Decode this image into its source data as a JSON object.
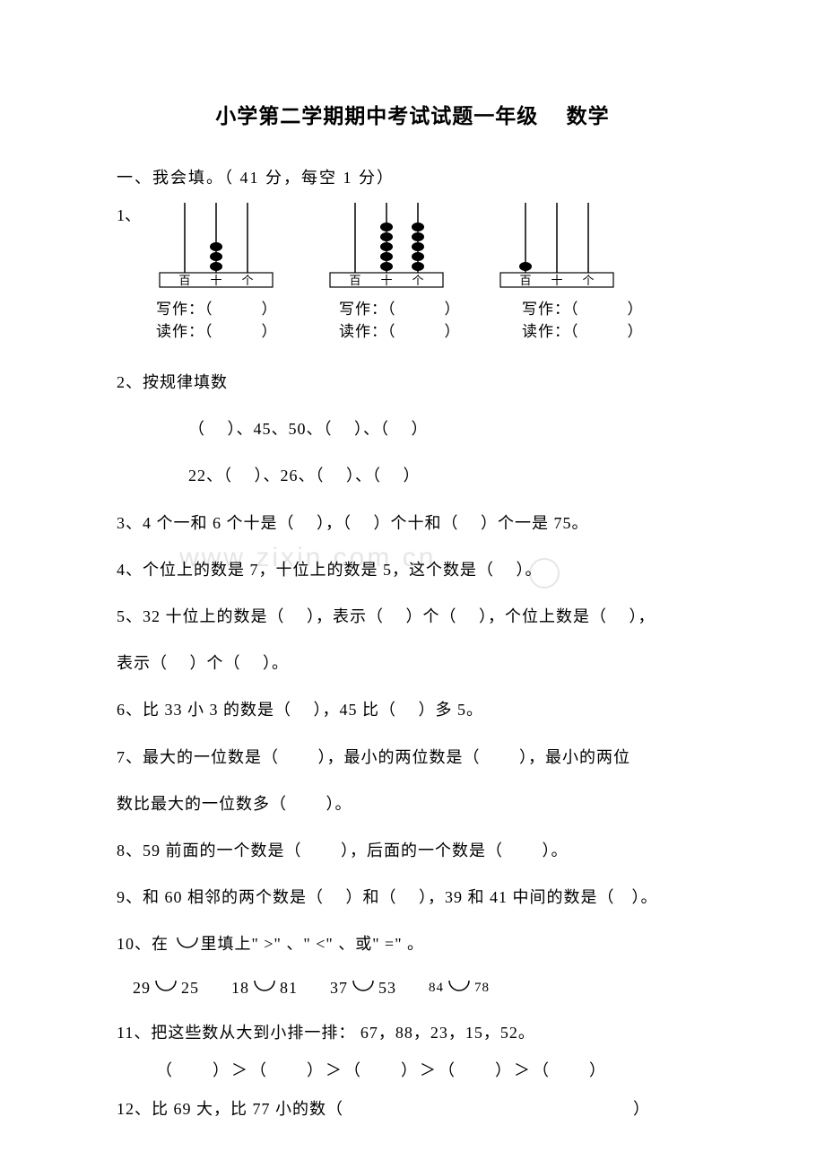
{
  "title": "小学第二学期期中考试试题一年级　 数学",
  "section1_header": "一、我会填。（ 41 分，每空 1 分）",
  "watermark_text": "www zixin com cn",
  "q1": {
    "num": "1、",
    "labels": {
      "bai": "百",
      "shi": "十",
      "ge": "个"
    },
    "write_prefix": "写作：（",
    "write_suffix": "）",
    "read_prefix": "读作：（",
    "read_suffix": "）",
    "abacus_bg": "#ffffff",
    "abacus_line": "#000000",
    "abacus_bead": "#000000",
    "abacus": [
      {
        "beads": [
          0,
          3,
          0
        ]
      },
      {
        "beads": [
          0,
          5,
          5
        ]
      },
      {
        "beads": [
          1,
          0,
          0
        ]
      }
    ]
  },
  "q2": {
    "label": "2、按规律填数",
    "line1": "（　 ）、45、50、（　 ）、（　 ）",
    "line2": "22、（　 ）、26、（　 ）、（　 ）"
  },
  "q3": "3、4 个一和 6 个十是（　 ），（　 ）个十和（　 ）个一是 75。",
  "q4": "4、个位上的数是 7，十位上的数是 5，这个数是（　 ）。",
  "q5": "5、32 十位上的数是（　 ），表示（　 ）个（　 ），个位上数是（　 ），",
  "q5b": "表示（　 ）个（　 ）。",
  "q6": "6、比 33 小 3 的数是（　 ），45 比（　 ）多 5。",
  "q7": "7、最大的一位数是（　 　），最小的两位数是（　 　），最小的两位",
  "q7b": "数比最大的一位数多（　 　）。",
  "q8": "8、59 前面的一个数是（　 　），后面的一个数是（　 　）。",
  "q9": "9、和 60 相邻的两个数是（　 ）和（　 ），39 和 41 中间的数是（　）。",
  "q10": {
    "prefix": "10、在 ",
    "mid": "里填上\" >\" 、\" <\" 、或\" =\" 。",
    "pairs": [
      {
        "a": "29",
        "b": "25"
      },
      {
        "a": "18",
        "b": "81"
      },
      {
        "a": "37",
        "b": "53",
        "smallA": false
      },
      {
        "a": "84",
        "b": "78",
        "smallA": true
      }
    ]
  },
  "q11": "11、把这些数从大到小排一排： 67，88，23，15，52。",
  "q11b": "（　　）＞（　　）＞（　　）＞（　　）＞（　　）",
  "q12": "12、比 69 大，比 77 小的数（　　　　　　　　　　　　　　　　　）",
  "circle": {
    "stroke": "#000000",
    "fill": "none",
    "r": 13
  }
}
